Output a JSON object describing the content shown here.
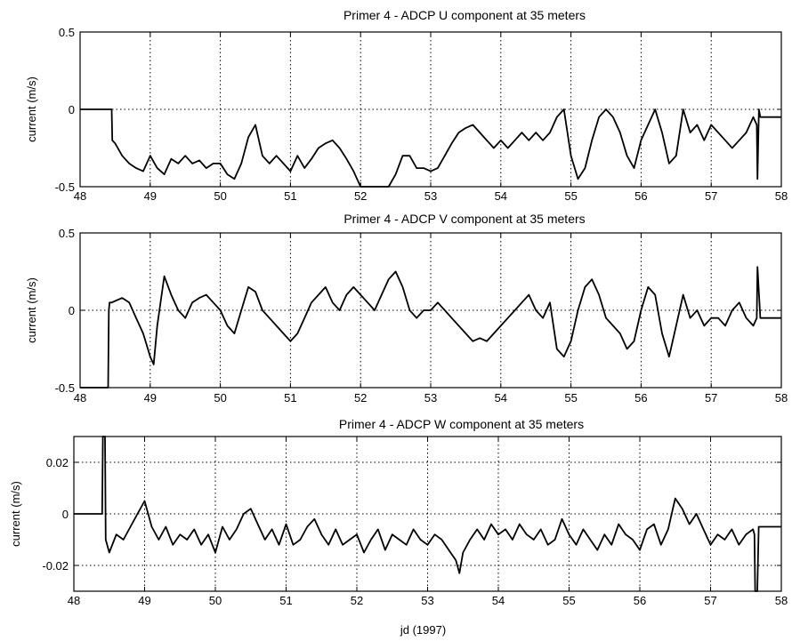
{
  "chart_data": [
    {
      "type": "line",
      "title": "Primer 4 - ADCP U component at 35 meters",
      "ylabel": "current (m/s)",
      "xlabel": "",
      "xlim": [
        48,
        58
      ],
      "ylim": [
        -0.5,
        0.5
      ],
      "xticks": [
        48,
        49,
        50,
        51,
        52,
        53,
        54,
        55,
        56,
        57,
        58
      ],
      "yticks": [
        -0.5,
        0,
        0.5
      ],
      "ytick_labels": [
        "-0.5",
        "0",
        "0.5"
      ],
      "grid": "dotted",
      "series": [
        {
          "color": "#000000",
          "x": [
            48.0,
            48.45,
            48.46,
            48.5,
            48.6,
            48.7,
            48.8,
            48.9,
            49.0,
            49.1,
            49.2,
            49.3,
            49.4,
            49.5,
            49.6,
            49.7,
            49.8,
            49.9,
            50.0,
            50.1,
            50.2,
            50.3,
            50.4,
            50.5,
            50.6,
            50.7,
            50.8,
            50.9,
            51.0,
            51.1,
            51.2,
            51.3,
            51.4,
            51.5,
            51.6,
            51.7,
            51.8,
            51.9,
            52.0,
            52.1,
            52.2,
            52.3,
            52.4,
            52.5,
            52.6,
            52.7,
            52.8,
            52.9,
            53.0,
            53.1,
            53.2,
            53.3,
            53.4,
            53.5,
            53.6,
            53.7,
            53.8,
            53.9,
            54.0,
            54.1,
            54.2,
            54.3,
            54.4,
            54.5,
            54.6,
            54.7,
            54.8,
            54.9,
            55.0,
            55.1,
            55.2,
            55.3,
            55.4,
            55.5,
            55.6,
            55.7,
            55.8,
            55.9,
            56.0,
            56.1,
            56.2,
            56.3,
            56.4,
            56.5,
            56.6,
            56.7,
            56.8,
            56.9,
            57.0,
            57.1,
            57.2,
            57.3,
            57.4,
            57.5,
            57.6,
            57.65,
            57.66,
            57.68,
            57.7,
            58.0
          ],
          "y": [
            0.0,
            0.0,
            -0.2,
            -0.22,
            -0.3,
            -0.35,
            -0.38,
            -0.4,
            -0.3,
            -0.38,
            -0.42,
            -0.32,
            -0.35,
            -0.3,
            -0.35,
            -0.33,
            -0.38,
            -0.35,
            -0.35,
            -0.42,
            -0.45,
            -0.35,
            -0.18,
            -0.1,
            -0.3,
            -0.35,
            -0.3,
            -0.35,
            -0.4,
            -0.3,
            -0.38,
            -0.32,
            -0.25,
            -0.22,
            -0.2,
            -0.25,
            -0.32,
            -0.4,
            -0.5,
            -0.5,
            -0.5,
            -0.5,
            -0.5,
            -0.42,
            -0.3,
            -0.3,
            -0.38,
            -0.38,
            -0.4,
            -0.38,
            -0.3,
            -0.22,
            -0.15,
            -0.12,
            -0.1,
            -0.15,
            -0.2,
            -0.25,
            -0.2,
            -0.25,
            -0.2,
            -0.15,
            -0.2,
            -0.15,
            -0.2,
            -0.15,
            -0.05,
            0.0,
            -0.3,
            -0.45,
            -0.38,
            -0.2,
            -0.05,
            0.0,
            -0.05,
            -0.15,
            -0.3,
            -0.38,
            -0.2,
            -0.1,
            0.0,
            -0.15,
            -0.35,
            -0.3,
            0.0,
            -0.15,
            -0.1,
            -0.2,
            -0.1,
            -0.15,
            -0.2,
            -0.25,
            -0.2,
            -0.15,
            -0.05,
            -0.1,
            -0.45,
            0.0,
            -0.05,
            -0.05
          ]
        }
      ]
    },
    {
      "type": "line",
      "title": "Primer 4 - ADCP V component at 35 meters",
      "ylabel": "current (m/s)",
      "xlabel": "",
      "xlim": [
        48,
        58
      ],
      "ylim": [
        -0.5,
        0.5
      ],
      "xticks": [
        48,
        49,
        50,
        51,
        52,
        53,
        54,
        55,
        56,
        57,
        58
      ],
      "yticks": [
        -0.5,
        0,
        0.5
      ],
      "ytick_labels": [
        "-0.5",
        "0",
        "0.5"
      ],
      "grid": "dotted",
      "series": [
        {
          "color": "#000000",
          "x": [
            48.0,
            48.4,
            48.41,
            48.42,
            48.45,
            48.6,
            48.7,
            48.8,
            48.9,
            49.0,
            49.05,
            49.1,
            49.2,
            49.3,
            49.4,
            49.5,
            49.6,
            49.7,
            49.8,
            49.9,
            50.0,
            50.1,
            50.2,
            50.3,
            50.4,
            50.5,
            50.6,
            50.7,
            50.8,
            50.9,
            51.0,
            51.1,
            51.2,
            51.3,
            51.4,
            51.5,
            51.6,
            51.7,
            51.8,
            51.9,
            52.0,
            52.1,
            52.2,
            52.3,
            52.4,
            52.5,
            52.6,
            52.7,
            52.8,
            52.9,
            53.0,
            53.1,
            53.2,
            53.3,
            53.4,
            53.5,
            53.6,
            53.7,
            53.8,
            53.9,
            54.0,
            54.1,
            54.2,
            54.3,
            54.4,
            54.5,
            54.6,
            54.7,
            54.8,
            54.9,
            55.0,
            55.1,
            55.2,
            55.3,
            55.4,
            55.5,
            55.6,
            55.7,
            55.8,
            55.9,
            56.0,
            56.1,
            56.2,
            56.3,
            56.4,
            56.5,
            56.6,
            56.7,
            56.8,
            56.9,
            57.0,
            57.1,
            57.2,
            57.3,
            57.4,
            57.5,
            57.6,
            57.65,
            57.66,
            57.7,
            58.0
          ],
          "y": [
            -0.5,
            -0.5,
            0.0,
            0.05,
            0.05,
            0.08,
            0.05,
            -0.05,
            -0.15,
            -0.3,
            -0.35,
            -0.1,
            0.22,
            0.1,
            0.0,
            -0.05,
            0.05,
            0.08,
            0.1,
            0.05,
            0.0,
            -0.1,
            -0.15,
            0.0,
            0.15,
            0.12,
            0.0,
            -0.05,
            -0.1,
            -0.15,
            -0.2,
            -0.15,
            -0.05,
            0.05,
            0.1,
            0.15,
            0.05,
            0.0,
            0.1,
            0.15,
            0.1,
            0.05,
            0.0,
            0.1,
            0.2,
            0.25,
            0.15,
            0.0,
            -0.05,
            0.0,
            0.0,
            0.05,
            0.0,
            -0.05,
            -0.1,
            -0.15,
            -0.2,
            -0.18,
            -0.2,
            -0.15,
            -0.1,
            -0.05,
            0.0,
            0.05,
            0.1,
            0.0,
            -0.05,
            0.05,
            -0.25,
            -0.3,
            -0.2,
            0.0,
            0.15,
            0.2,
            0.1,
            -0.05,
            -0.1,
            -0.15,
            -0.25,
            -0.2,
            0.0,
            0.15,
            0.1,
            -0.15,
            -0.3,
            -0.1,
            0.1,
            -0.05,
            0.0,
            -0.1,
            -0.05,
            -0.05,
            -0.1,
            0.0,
            0.05,
            -0.05,
            -0.1,
            -0.05,
            0.28,
            -0.05,
            -0.05
          ]
        }
      ]
    },
    {
      "type": "line",
      "title": "Primer 4 - ADCP W component at 35 meters",
      "ylabel": "current (m/s)",
      "xlabel": "jd (1997)",
      "xlim": [
        48,
        58
      ],
      "ylim": [
        -0.03,
        0.03
      ],
      "xticks": [
        48,
        49,
        50,
        51,
        52,
        53,
        54,
        55,
        56,
        57,
        58
      ],
      "yticks": [
        -0.02,
        0,
        0.02
      ],
      "ytick_labels": [
        "-0.02",
        "0",
        "0.02"
      ],
      "grid": "dotted",
      "series": [
        {
          "color": "#000000",
          "x": [
            48.0,
            48.4,
            48.41,
            48.44,
            48.45,
            48.5,
            48.6,
            48.7,
            48.8,
            48.9,
            49.0,
            49.1,
            49.2,
            49.3,
            49.4,
            49.5,
            49.6,
            49.7,
            49.8,
            49.9,
            50.0,
            50.1,
            50.2,
            50.3,
            50.4,
            50.5,
            50.6,
            50.7,
            50.8,
            50.9,
            51.0,
            51.1,
            51.2,
            51.3,
            51.4,
            51.5,
            51.6,
            51.7,
            51.8,
            51.9,
            52.0,
            52.1,
            52.2,
            52.3,
            52.4,
            52.5,
            52.6,
            52.7,
            52.8,
            52.9,
            53.0,
            53.1,
            53.2,
            53.3,
            53.4,
            53.45,
            53.5,
            53.6,
            53.7,
            53.8,
            53.9,
            54.0,
            54.1,
            54.2,
            54.3,
            54.4,
            54.5,
            54.6,
            54.7,
            54.8,
            54.9,
            55.0,
            55.1,
            55.2,
            55.3,
            55.4,
            55.5,
            55.6,
            55.7,
            55.8,
            55.9,
            56.0,
            56.1,
            56.2,
            56.3,
            56.4,
            56.5,
            56.6,
            56.7,
            56.8,
            56.9,
            57.0,
            57.1,
            57.2,
            57.3,
            57.4,
            57.5,
            57.6,
            57.62,
            57.63,
            57.66,
            57.68,
            58.0
          ],
          "y": [
            0.0,
            0.0,
            0.03,
            0.03,
            -0.01,
            -0.015,
            -0.008,
            -0.01,
            -0.005,
            0.0,
            0.005,
            -0.005,
            -0.01,
            -0.005,
            -0.012,
            -0.008,
            -0.01,
            -0.006,
            -0.012,
            -0.008,
            -0.015,
            -0.005,
            -0.01,
            -0.006,
            0.0,
            0.002,
            -0.004,
            -0.01,
            -0.006,
            -0.012,
            -0.004,
            -0.012,
            -0.01,
            -0.005,
            -0.002,
            -0.008,
            -0.012,
            -0.006,
            -0.012,
            -0.01,
            -0.008,
            -0.015,
            -0.01,
            -0.006,
            -0.014,
            -0.008,
            -0.01,
            -0.012,
            -0.006,
            -0.01,
            -0.012,
            -0.008,
            -0.01,
            -0.014,
            -0.018,
            -0.023,
            -0.015,
            -0.01,
            -0.006,
            -0.01,
            -0.004,
            -0.008,
            -0.006,
            -0.01,
            -0.004,
            -0.008,
            -0.01,
            -0.006,
            -0.012,
            -0.01,
            -0.002,
            -0.008,
            -0.012,
            -0.006,
            -0.01,
            -0.014,
            -0.008,
            -0.012,
            -0.004,
            -0.008,
            -0.01,
            -0.014,
            -0.006,
            -0.004,
            -0.012,
            -0.006,
            0.006,
            0.002,
            -0.004,
            0.0,
            -0.006,
            -0.012,
            -0.008,
            -0.01,
            -0.006,
            -0.012,
            -0.008,
            -0.006,
            -0.008,
            -0.03,
            -0.03,
            -0.005,
            -0.005
          ]
        }
      ]
    }
  ]
}
